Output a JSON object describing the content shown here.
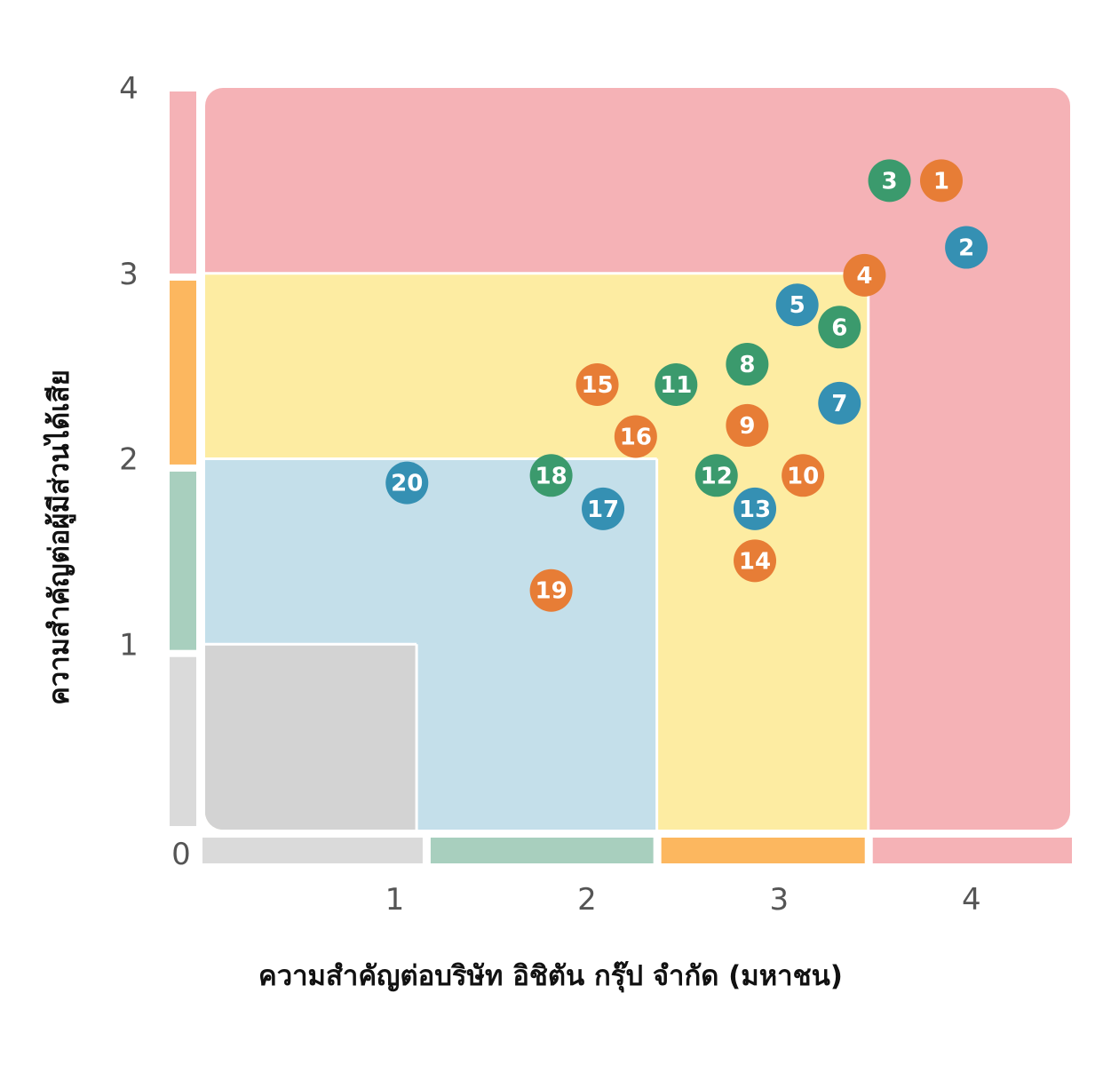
{
  "chart_data": {
    "type": "scatter",
    "xlabel": "ความสำคัญต่อบริษัท อิชิตัน กรุ๊ป จำกัด (มหาชน)",
    "ylabel": "ความสำคัญต่อผู้มีส่วนได้เสีย",
    "origin_label": "0",
    "xlim": [
      0,
      4.5
    ],
    "ylim": [
      0,
      4
    ],
    "x_ticks": [
      {
        "value": 1,
        "label": "1"
      },
      {
        "value": 2,
        "label": "2"
      },
      {
        "value": 3,
        "label": "3"
      },
      {
        "value": 4,
        "label": "4"
      }
    ],
    "y_ticks": [
      {
        "value": 1,
        "label": "1"
      },
      {
        "value": 2,
        "label": "2"
      },
      {
        "value": 3,
        "label": "3"
      },
      {
        "value": 4,
        "label": "4"
      }
    ],
    "zones": [
      {
        "x": [
          0,
          4.5
        ],
        "y": [
          0,
          4
        ],
        "color": "#f5b2b6"
      },
      {
        "x": [
          0,
          3.45
        ],
        "y": [
          0,
          3.0
        ],
        "color": "#fdeca2"
      },
      {
        "x": [
          0,
          2.35
        ],
        "y": [
          0,
          2.0
        ],
        "color": "#c4dfea"
      },
      {
        "x": [
          0,
          1.1
        ],
        "y": [
          0,
          1.0
        ],
        "color": "#d3d3d3"
      }
    ],
    "x_bands": [
      {
        "from": 0,
        "to": 1.15,
        "color": "#dadada"
      },
      {
        "from": 1.15,
        "to": 2.35,
        "color": "#a8cfbe"
      },
      {
        "from": 2.35,
        "to": 3.45,
        "color": "#fcb75f"
      },
      {
        "from": 3.45,
        "to": 4.5,
        "color": "#f5b2b6"
      }
    ],
    "y_bands": [
      {
        "from": 0,
        "to": 0.95,
        "color": "#dadada"
      },
      {
        "from": 0.95,
        "to": 1.95,
        "color": "#a8cfbe"
      },
      {
        "from": 1.95,
        "to": 2.98,
        "color": "#fcb75f"
      },
      {
        "from": 2.98,
        "to": 4.0,
        "color": "#f5b2b6"
      }
    ],
    "colors": {
      "orange": "#e77d36",
      "blue": "#3590b3",
      "green": "#3b9a6d"
    },
    "points": [
      {
        "label": "1",
        "x": 3.83,
        "y": 3.5,
        "color": "orange"
      },
      {
        "label": "2",
        "x": 3.96,
        "y": 3.14,
        "color": "blue"
      },
      {
        "label": "3",
        "x": 3.56,
        "y": 3.5,
        "color": "green"
      },
      {
        "label": "4",
        "x": 3.43,
        "y": 2.99,
        "color": "orange"
      },
      {
        "label": "5",
        "x": 3.08,
        "y": 2.83,
        "color": "blue"
      },
      {
        "label": "6",
        "x": 3.3,
        "y": 2.71,
        "color": "green"
      },
      {
        "label": "7",
        "x": 3.3,
        "y": 2.3,
        "color": "blue"
      },
      {
        "label": "8",
        "x": 2.82,
        "y": 2.51,
        "color": "green"
      },
      {
        "label": "9",
        "x": 2.82,
        "y": 2.18,
        "color": "orange"
      },
      {
        "label": "10",
        "x": 3.11,
        "y": 1.91,
        "color": "orange"
      },
      {
        "label": "11",
        "x": 2.45,
        "y": 2.4,
        "color": "green"
      },
      {
        "label": "12",
        "x": 2.66,
        "y": 1.91,
        "color": "green"
      },
      {
        "label": "13",
        "x": 2.86,
        "y": 1.73,
        "color": "blue"
      },
      {
        "label": "14",
        "x": 2.86,
        "y": 1.45,
        "color": "orange"
      },
      {
        "label": "15",
        "x": 2.04,
        "y": 2.4,
        "color": "orange"
      },
      {
        "label": "16",
        "x": 2.24,
        "y": 2.12,
        "color": "orange"
      },
      {
        "label": "17",
        "x": 2.07,
        "y": 1.73,
        "color": "blue"
      },
      {
        "label": "18",
        "x": 1.8,
        "y": 1.91,
        "color": "green"
      },
      {
        "label": "19",
        "x": 1.8,
        "y": 1.29,
        "color": "orange"
      },
      {
        "label": "20",
        "x": 1.05,
        "y": 1.87,
        "color": "blue"
      }
    ]
  }
}
